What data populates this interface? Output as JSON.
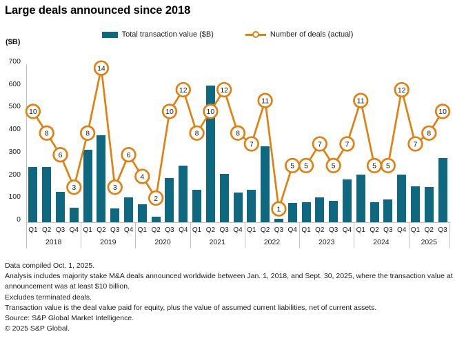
{
  "title": "Large deals announced since 2018",
  "y_axis_unit": "($B)",
  "chart_data": {
    "type": "combo-bar-line",
    "title": "Large deals announced since 2018",
    "ylabel": "($B)",
    "ylim": [
      0,
      700
    ],
    "ytick_step": 100,
    "grid": false,
    "legend_position": "top",
    "year_groups": [
      {
        "year": "2018",
        "quarters": [
          "Q1",
          "Q2",
          "Q3",
          "Q4"
        ]
      },
      {
        "year": "2019",
        "quarters": [
          "Q1",
          "Q2",
          "Q3",
          "Q4"
        ]
      },
      {
        "year": "2020",
        "quarters": [
          "Q1",
          "Q2",
          "Q3",
          "Q4"
        ]
      },
      {
        "year": "2021",
        "quarters": [
          "Q1",
          "Q2",
          "Q3",
          "Q4"
        ]
      },
      {
        "year": "2022",
        "quarters": [
          "Q1",
          "Q2",
          "Q3",
          "Q4"
        ]
      },
      {
        "year": "2023",
        "quarters": [
          "Q1",
          "Q2",
          "Q3",
          "Q4"
        ]
      },
      {
        "year": "2024",
        "quarters": [
          "Q1",
          "Q2",
          "Q3",
          "Q4"
        ]
      },
      {
        "year": "2025",
        "quarters": [
          "Q1",
          "Q2",
          "Q3"
        ]
      }
    ],
    "series": [
      {
        "name": "Total transaction value ($B)",
        "type": "bar",
        "color": "#0E6980",
        "values": [
          245,
          245,
          135,
          65,
          320,
          385,
          60,
          110,
          80,
          25,
          195,
          250,
          145,
          605,
          215,
          130,
          145,
          335,
          15,
          85,
          90,
          110,
          95,
          190,
          210,
          90,
          100,
          210,
          160,
          155,
          285
        ]
      },
      {
        "name": "Number of deals (actual)",
        "type": "line",
        "color": "#E0810F",
        "marker": "circle-with-value-label",
        "values": [
          10,
          8,
          6,
          3,
          8,
          14,
          3,
          6,
          4,
          2,
          10,
          12,
          8,
          10,
          12,
          8,
          7,
          11,
          1,
          5,
          5,
          7,
          5,
          7,
          11,
          5,
          5,
          12,
          7,
          8,
          10
        ]
      }
    ]
  },
  "footnotes": [
    "Data compiled Oct. 1, 2025.",
    "Analysis includes majority stake M&A deals announced worldwide between Jan. 1, 2018, and Sept. 30, 2025, where the transaction value at announcement was at least $10 billion.",
    "Excludes terminated deals.",
    "Transaction value is the deal value paid for equity, plus the value of assumed current liabilities, net of current assets.",
    "Source: S&P Global Market Intelligence.",
    "© 2025 S&P Global."
  ]
}
